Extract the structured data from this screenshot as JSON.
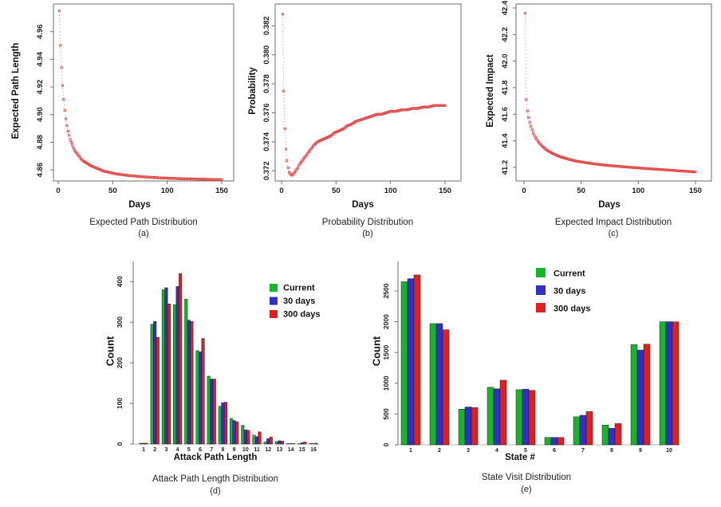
{
  "figure": {
    "background": "#ffffff"
  },
  "colors": {
    "text": "#1b1b1b",
    "axis_line": "#6e6e6e",
    "curve": "#e04444",
    "curve_line": "#f29a9a",
    "green": "#15b62c",
    "blue": "#3030c8",
    "red": "#e31e1e",
    "bar_border": "#151515"
  },
  "chart_data": [
    {
      "id": "a",
      "type": "scatter",
      "caption": "Expected Path Distribution",
      "panel_label": "(a)",
      "xlabel": "Days",
      "ylabel": "Expected Path Length",
      "xtick_values": [
        0,
        50,
        100,
        150
      ],
      "xtick_labels": [
        "0",
        "50",
        "100",
        "150"
      ],
      "ytick_values": [
        4.86,
        4.88,
        4.9,
        4.92,
        4.94,
        4.96
      ],
      "ytick_labels": [
        "4.86",
        "4.88",
        "4.90",
        "4.92",
        "4.94",
        "4.96"
      ],
      "xlim": [
        -4,
        161
      ],
      "ylim": [
        4.852,
        4.98
      ],
      "marker": "open-square",
      "line_style": "dotted",
      "x": [
        1,
        2,
        3,
        4,
        5,
        6,
        7,
        8,
        9,
        10,
        11,
        12,
        13,
        14,
        15,
        16,
        18,
        20,
        22,
        24,
        26,
        28,
        30,
        33,
        36,
        39,
        42,
        45,
        48,
        51,
        54,
        57,
        60,
        64,
        68,
        72,
        76,
        80,
        84,
        88,
        92,
        96,
        100,
        105,
        110,
        115,
        120,
        125,
        130,
        135,
        140,
        145,
        150
      ],
      "y": [
        4.975,
        4.95,
        4.934,
        4.921,
        4.911,
        4.903,
        4.897,
        4.892,
        4.888,
        4.885,
        4.882,
        4.88,
        4.878,
        4.876,
        4.874,
        4.873,
        4.871,
        4.869,
        4.867,
        4.866,
        4.865,
        4.864,
        4.863,
        4.862,
        4.861,
        4.86,
        4.859,
        4.8585,
        4.858,
        4.8575,
        4.857,
        4.8567,
        4.8564,
        4.856,
        4.8557,
        4.8554,
        4.8551,
        4.8549,
        4.8547,
        4.8545,
        4.8543,
        4.8542,
        4.854,
        4.8539,
        4.8537,
        4.8536,
        4.8535,
        4.8534,
        4.8533,
        4.8532,
        4.8531,
        4.853,
        4.853
      ]
    },
    {
      "id": "b",
      "type": "scatter",
      "caption": "Probability Distribution",
      "panel_label": "(b)",
      "xlabel": "Days",
      "ylabel": "Probability",
      "xtick_values": [
        0,
        50,
        100,
        150
      ],
      "xtick_labels": [
        "0",
        "50",
        "100",
        "150"
      ],
      "ytick_values": [
        0.372,
        0.374,
        0.376,
        0.378,
        0.38,
        0.382
      ],
      "ytick_labels": [
        "0.372",
        "0.374",
        "0.376",
        "0.378",
        "0.380",
        "0.382"
      ],
      "xlim": [
        -4,
        161
      ],
      "ylim": [
        0.3713,
        0.3835
      ],
      "marker": "open-square",
      "line_style": "dotted",
      "x": [
        1,
        2,
        3,
        4,
        5,
        6,
        7,
        8,
        9,
        10,
        11,
        12,
        13,
        14,
        15,
        16,
        18,
        20,
        22,
        24,
        26,
        28,
        30,
        33,
        36,
        39,
        42,
        45,
        48,
        51,
        54,
        57,
        60,
        64,
        68,
        72,
        76,
        80,
        84,
        88,
        92,
        96,
        100,
        105,
        110,
        115,
        120,
        125,
        130,
        135,
        140,
        145,
        150
      ],
      "y": [
        0.3828,
        0.3775,
        0.3749,
        0.3735,
        0.3727,
        0.3722,
        0.3719,
        0.3718,
        0.3717,
        0.3717,
        0.3718,
        0.3719,
        0.372,
        0.3721,
        0.3722,
        0.3724,
        0.3726,
        0.3728,
        0.373,
        0.3732,
        0.3734,
        0.3736,
        0.3738,
        0.374,
        0.3741,
        0.3742,
        0.3743,
        0.3744,
        0.3746,
        0.3747,
        0.3748,
        0.3749,
        0.3751,
        0.3752,
        0.3754,
        0.3755,
        0.3756,
        0.3757,
        0.3758,
        0.3759,
        0.3759,
        0.376,
        0.3761,
        0.3761,
        0.3762,
        0.3762,
        0.3763,
        0.3763,
        0.3764,
        0.3764,
        0.3765,
        0.3765,
        0.3765
      ]
    },
    {
      "id": "c",
      "type": "scatter",
      "caption": "Expected Impact Distribution",
      "panel_label": "(c)",
      "xlabel": "Days",
      "ylabel": "Expected Impact",
      "xtick_values": [
        0,
        50,
        100,
        150
      ],
      "xtick_labels": [
        "0",
        "50",
        "100",
        "150"
      ],
      "ytick_values": [
        41.2,
        41.4,
        41.6,
        41.8,
        42.0,
        42.2,
        42.4
      ],
      "ytick_labels": [
        "41.2",
        "41.4",
        "41.6",
        "41.8",
        "42.0",
        "42.2",
        "42.4"
      ],
      "xlim": [
        -4,
        161
      ],
      "ylim": [
        41.098,
        42.43
      ],
      "marker": "open-square",
      "line_style": "dotted",
      "x": [
        1,
        2,
        3,
        4,
        5,
        6,
        7,
        8,
        9,
        10,
        11,
        12,
        13,
        14,
        15,
        16,
        18,
        20,
        22,
        24,
        26,
        28,
        30,
        33,
        36,
        39,
        42,
        45,
        48,
        51,
        54,
        57,
        60,
        64,
        68,
        72,
        76,
        80,
        84,
        88,
        92,
        96,
        100,
        105,
        110,
        115,
        120,
        125,
        130,
        135,
        140,
        145,
        150
      ],
      "y": [
        42.36,
        41.71,
        41.625,
        41.575,
        41.54,
        41.51,
        41.485,
        41.462,
        41.443,
        41.427,
        41.412,
        41.4,
        41.388,
        41.377,
        41.368,
        41.359,
        41.344,
        41.331,
        41.32,
        41.31,
        41.301,
        41.293,
        41.286,
        41.277,
        41.269,
        41.262,
        41.255,
        41.249,
        41.244,
        41.24,
        41.236,
        41.232,
        41.228,
        41.224,
        41.22,
        41.216,
        41.213,
        41.21,
        41.207,
        41.204,
        41.201,
        41.199,
        41.196,
        41.193,
        41.19,
        41.187,
        41.184,
        41.181,
        41.178,
        41.175,
        41.172,
        41.169,
        41.166
      ]
    },
    {
      "id": "d",
      "type": "bar",
      "caption": "Attack Path Length Distribution",
      "panel_label": "(d)",
      "xlabel": "Attack Path Length",
      "ylabel": "Count",
      "categories": [
        "1",
        "2",
        "3",
        "4",
        "5",
        "6",
        "7",
        "8",
        "9",
        "10",
        "11",
        "12",
        "13",
        "14",
        "15",
        "16"
      ],
      "ytick_values": [
        0,
        100,
        200,
        300,
        400
      ],
      "ytick_labels": [
        "0",
        "100",
        "200",
        "300",
        "400"
      ],
      "ylim": [
        0,
        430
      ],
      "legend_position": "top-right",
      "series": [
        {
          "name": "Current",
          "color_key": "green",
          "values": [
            2,
            295,
            380,
            343,
            357,
            230,
            167,
            93,
            63,
            46,
            22,
            5,
            6,
            1,
            1,
            1
          ]
        },
        {
          "name": "30 days",
          "color_key": "blue",
          "values": [
            2,
            302,
            385,
            388,
            305,
            227,
            160,
            102,
            58,
            35,
            18,
            13,
            8,
            1,
            3,
            1
          ]
        },
        {
          "name": "300 days",
          "color_key": "red",
          "values": [
            2,
            263,
            345,
            420,
            302,
            260,
            160,
            103,
            55,
            34,
            30,
            17,
            7,
            1,
            5,
            2
          ]
        }
      ]
    },
    {
      "id": "e",
      "type": "bar",
      "caption": "State Visit Distribution",
      "panel_label": "(e)",
      "xlabel": "State #",
      "ylabel": "Count",
      "categories": [
        "1",
        "2",
        "3",
        "4",
        "5",
        "6",
        "7",
        "8",
        "9",
        "10"
      ],
      "ytick_values": [
        0,
        500,
        1000,
        1500,
        2000,
        2500
      ],
      "ytick_labels": [
        "0",
        "500",
        "1000",
        "1500",
        "2000",
        "2500"
      ],
      "ylim": [
        0,
        2850
      ],
      "legend_position": "top-right",
      "series": [
        {
          "name": "Current",
          "color_key": "green",
          "values": [
            2650,
            1970,
            580,
            935,
            895,
            120,
            455,
            320,
            1630,
            2000
          ]
        },
        {
          "name": "30 days",
          "color_key": "blue",
          "values": [
            2700,
            1970,
            615,
            910,
            905,
            120,
            480,
            270,
            1540,
            2000
          ]
        },
        {
          "name": "300 days",
          "color_key": "red",
          "values": [
            2760,
            1870,
            605,
            1050,
            885,
            120,
            540,
            345,
            1635,
            2000
          ]
        }
      ]
    }
  ]
}
